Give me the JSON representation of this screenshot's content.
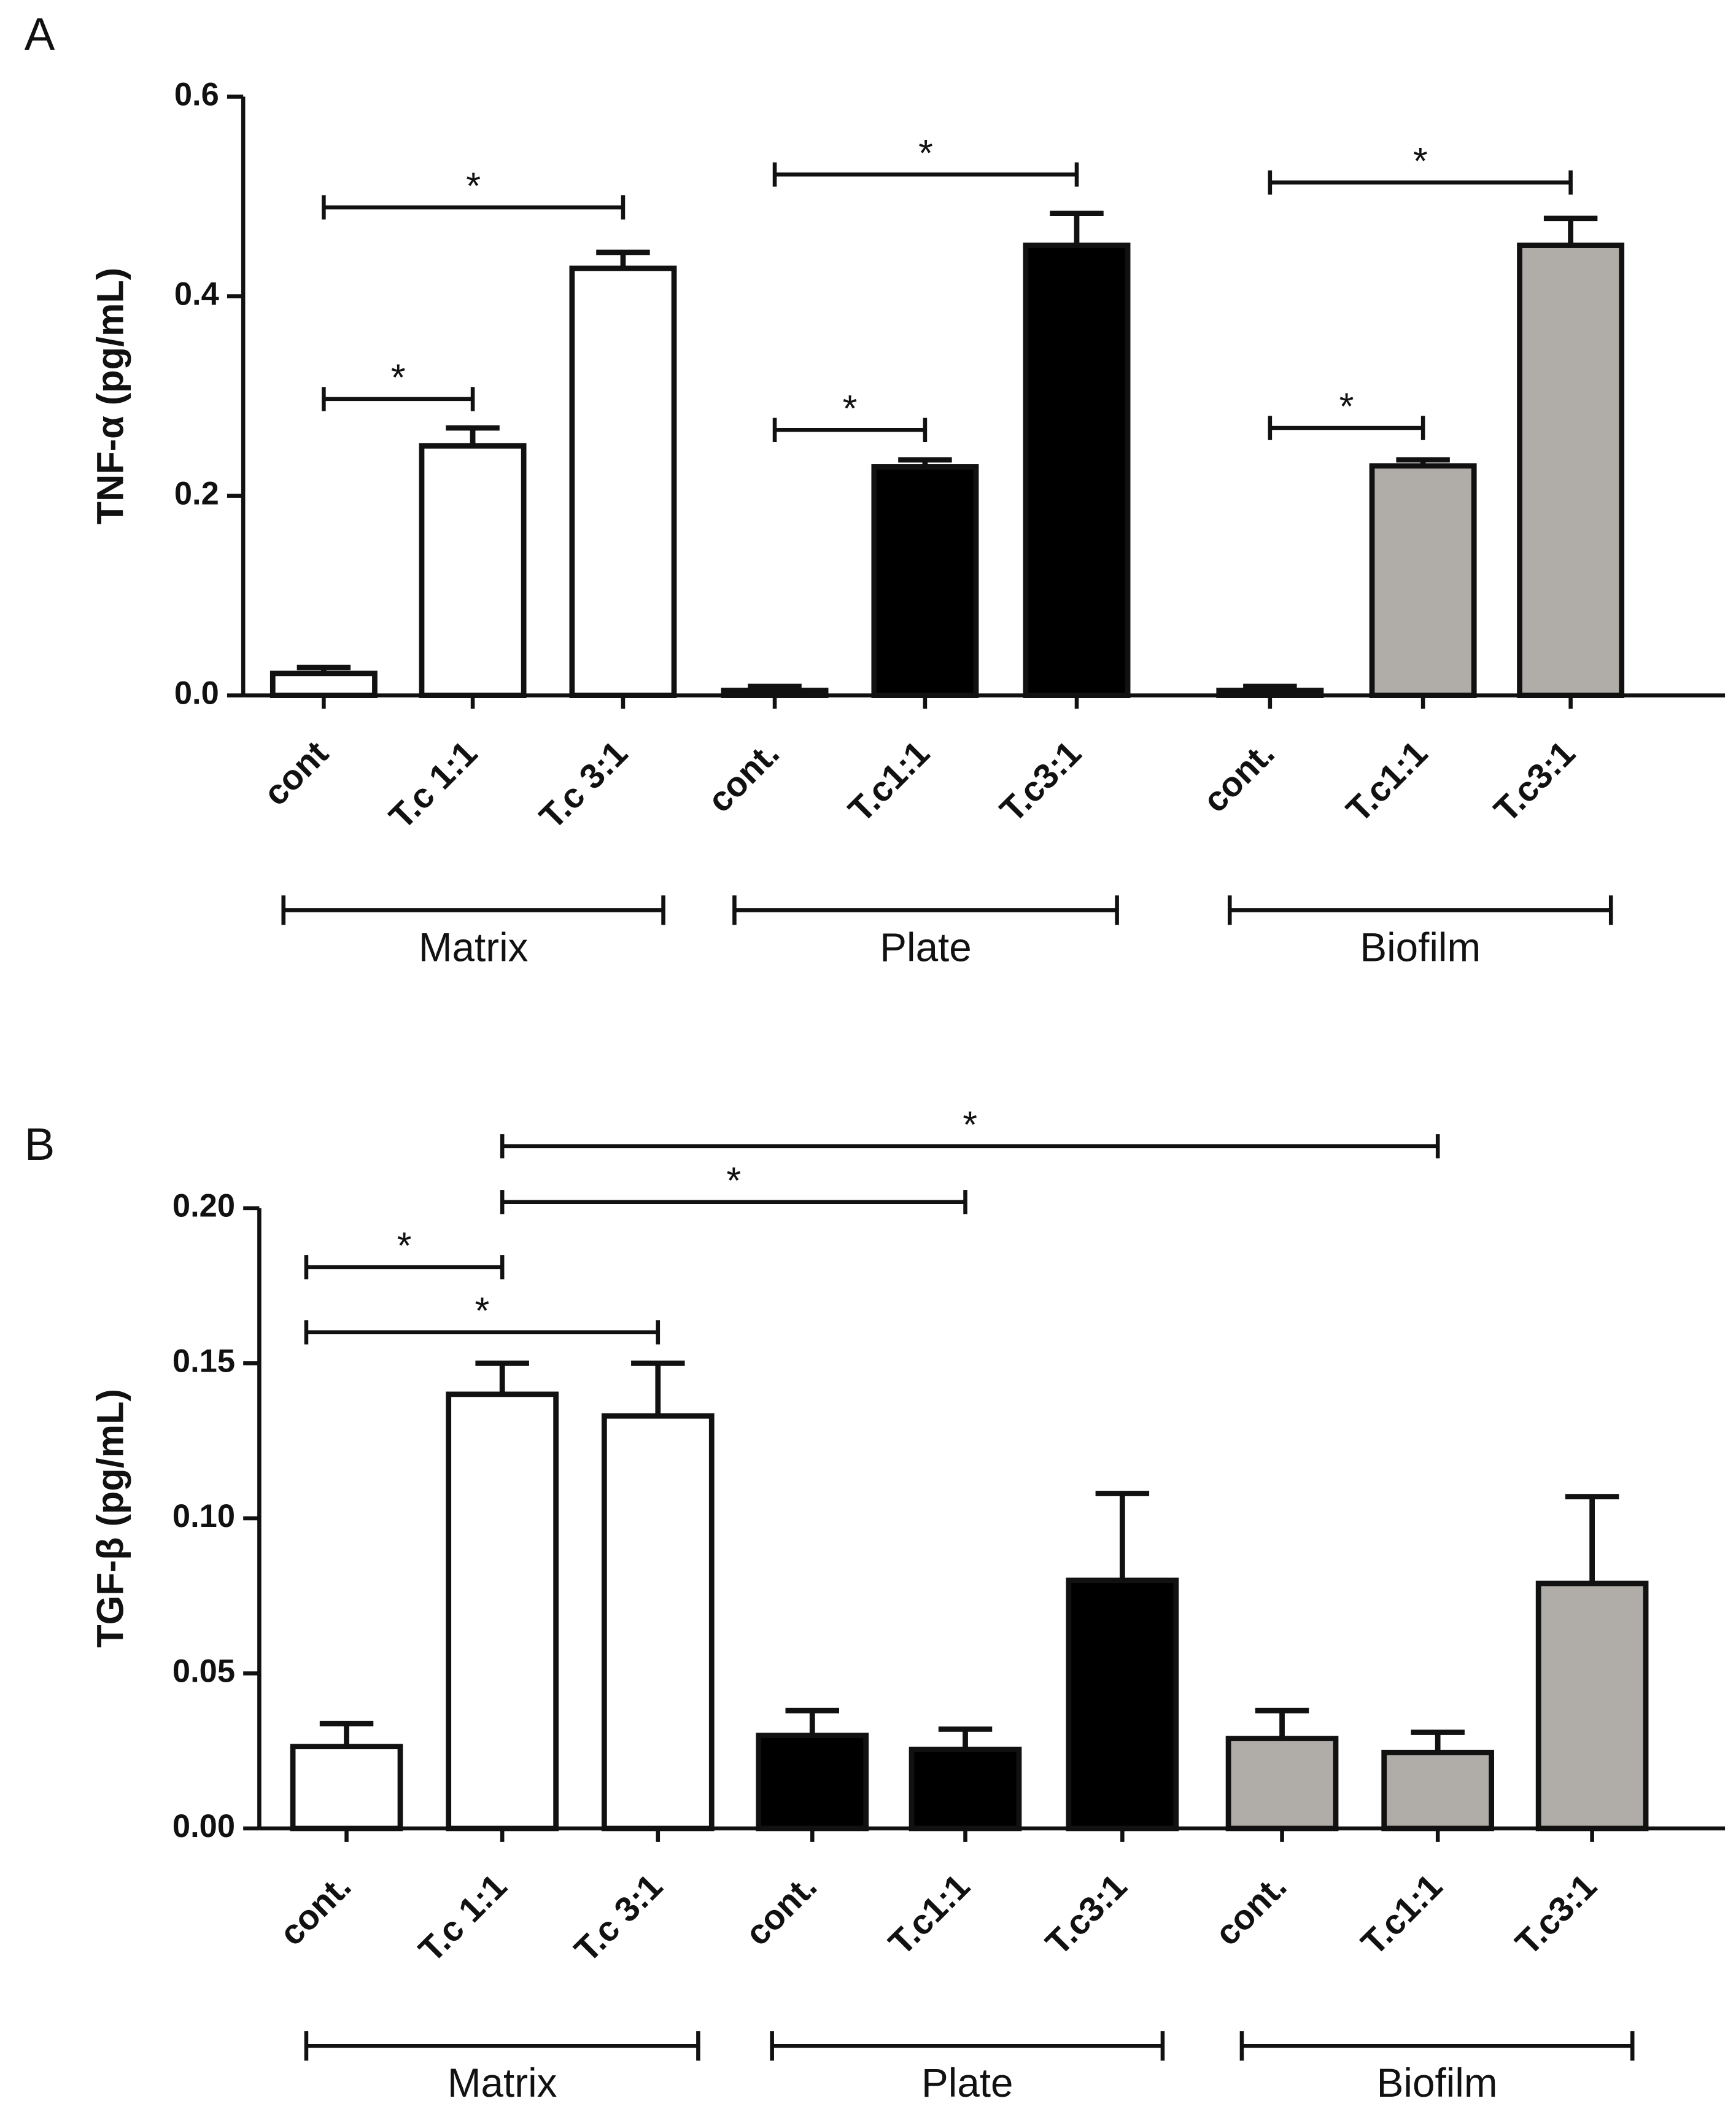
{
  "chart_data": [
    {
      "type": "bar",
      "panel": "A",
      "ylabel": "TNF-α (pg/mL)",
      "categories": [
        "cont",
        "T.c 1:1",
        "T.c 3:1",
        "cont.",
        "T.c1:1",
        "T.c3:1",
        "cont.",
        "T.c1:1",
        "T.c3:1"
      ],
      "values": [
        0.022,
        0.25,
        0.428,
        0.005,
        0.229,
        0.451,
        0.005,
        0.23,
        0.451
      ],
      "errors": [
        0.006,
        0.018,
        0.016,
        0.004,
        0.007,
        0.032,
        0.004,
        0.006,
        0.027
      ],
      "colors": [
        "#ffffff",
        "#ffffff",
        "#ffffff",
        "#000000",
        "#000000",
        "#000000",
        "#b0aca8",
        "#b0aca8",
        "#b0aca8"
      ],
      "ylim": [
        0,
        0.6
      ],
      "yticks": [
        {
          "value": 0,
          "label": "0.0"
        },
        0.2,
        0.4,
        0.6
      ],
      "groups": [
        {
          "label": "Matrix",
          "from": 0,
          "to": 2
        },
        {
          "label": "Plate",
          "from": 3,
          "to": 5
        },
        {
          "label": "Biofilm",
          "from": 6,
          "to": 8
        }
      ],
      "annotations": [
        {
          "text": "*",
          "from": 0,
          "to": 2,
          "y": 0.489
        },
        {
          "text": "*",
          "from": 0,
          "to": 1,
          "y": 0.297
        },
        {
          "text": "*",
          "from": 3,
          "to": 5,
          "y": 0.522
        },
        {
          "text": "*",
          "from": 3,
          "to": 4,
          "y": 0.266
        },
        {
          "text": "*",
          "from": 6,
          "to": 8,
          "y": 0.514
        },
        {
          "text": "*",
          "from": 6,
          "to": 7,
          "y": 0.268
        }
      ]
    },
    {
      "type": "bar",
      "panel": "B",
      "ylabel": "TGF-β (pg/mL)",
      "categories": [
        "cont.",
        "T.c 1:1",
        "T.c 3:1",
        "cont.",
        "T.c1:1",
        "T.c3:1",
        "cont.",
        "T.c1:1",
        "T.c3:1"
      ],
      "values": [
        0.0264,
        0.14,
        0.133,
        0.03,
        0.0255,
        0.08,
        0.029,
        0.0245,
        0.079
      ],
      "errors": [
        0.0074,
        0.01,
        0.017,
        0.008,
        0.0065,
        0.028,
        0.009,
        0.0065,
        0.028
      ],
      "colors": [
        "#ffffff",
        "#ffffff",
        "#ffffff",
        "#000000",
        "#000000",
        "#000000",
        "#b0aca8",
        "#b0aca8",
        "#b0aca8"
      ],
      "ylim": [
        0,
        0.2
      ],
      "yticks": [
        {
          "value": 0,
          "label": "0.00"
        },
        {
          "value": 0.05,
          "label": "0.05"
        },
        {
          "value": 0.1,
          "label": "0.10"
        },
        {
          "value": 0.15,
          "label": "0.15"
        },
        {
          "value": 0.2,
          "label": "0.20"
        }
      ],
      "groups": [
        {
          "label": "Matrix",
          "from": 0,
          "to": 2
        },
        {
          "label": "Plate",
          "from": 3,
          "to": 5
        },
        {
          "label": "Biofilm",
          "from": 6,
          "to": 8
        }
      ],
      "annotations": [
        {
          "text": "*",
          "from": 1,
          "to": 7,
          "y": 0.22
        },
        {
          "text": "*",
          "from": 1,
          "to": 4,
          "y": 0.202
        },
        {
          "text": "*",
          "from": 0,
          "to": 1,
          "y": 0.181
        },
        {
          "text": "*",
          "from": 0,
          "to": 2,
          "y": 0.16
        }
      ]
    }
  ]
}
